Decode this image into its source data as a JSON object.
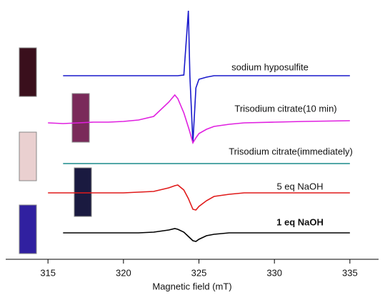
{
  "chart_data": {
    "type": "line",
    "xlabel": "Magnetic field (mT)",
    "xlim": [
      312.2,
      336.9
    ],
    "xticks": [
      315,
      320,
      325,
      330,
      335
    ],
    "ylim": [
      0,
      353
    ],
    "x": [
      315,
      316,
      317,
      318,
      319,
      320,
      321,
      322,
      323,
      323.4,
      323.6,
      324,
      324.3,
      324.4,
      324.6,
      324.8,
      325,
      325.5,
      326,
      327,
      328,
      330,
      332,
      335
    ],
    "series": [
      {
        "name": "sodium hyposulfite",
        "color": "#1a1acc",
        "values": [
          null,
          257,
          257,
          257,
          257,
          257,
          257,
          257,
          257,
          257,
          257,
          258,
          348,
          257,
          163,
          240,
          252,
          255,
          257,
          257,
          257,
          257,
          257,
          257
        ]
      },
      {
        "name": "Trisodium citrate(10 min)",
        "color": "#e020e0",
        "values": [
          191,
          190,
          191,
          192,
          192,
          193,
          195,
          200,
          220,
          230,
          225,
          205,
          185,
          178,
          163,
          170,
          176,
          182,
          186,
          189,
          191,
          192,
          193,
          194
        ]
      },
      {
        "name": "Trisodium citrate(immediately)",
        "color": "#1a8a8a",
        "values": [
          null,
          134,
          134,
          134,
          134,
          134,
          134,
          134,
          134,
          134,
          134,
          134,
          134,
          134,
          134,
          134,
          134,
          134,
          134,
          134,
          134,
          134,
          134,
          134
        ]
      },
      {
        "name": "5 eq NaOH",
        "color": "#e01a1a",
        "values": [
          93,
          93,
          93,
          93,
          93,
          93,
          94,
          95,
          100,
          103,
          104,
          97,
          85,
          80,
          70,
          69,
          74,
          82,
          88,
          91,
          93,
          93,
          93,
          93
        ]
      },
      {
        "name": "1 eq NaOH",
        "color": "#000000",
        "values": [
          null,
          37,
          37,
          37,
          37,
          37,
          37,
          38,
          41,
          43,
          42,
          38,
          32,
          30,
          26,
          25,
          28,
          33,
          35,
          37,
          37,
          37,
          37,
          37
        ]
      }
    ]
  }
}
